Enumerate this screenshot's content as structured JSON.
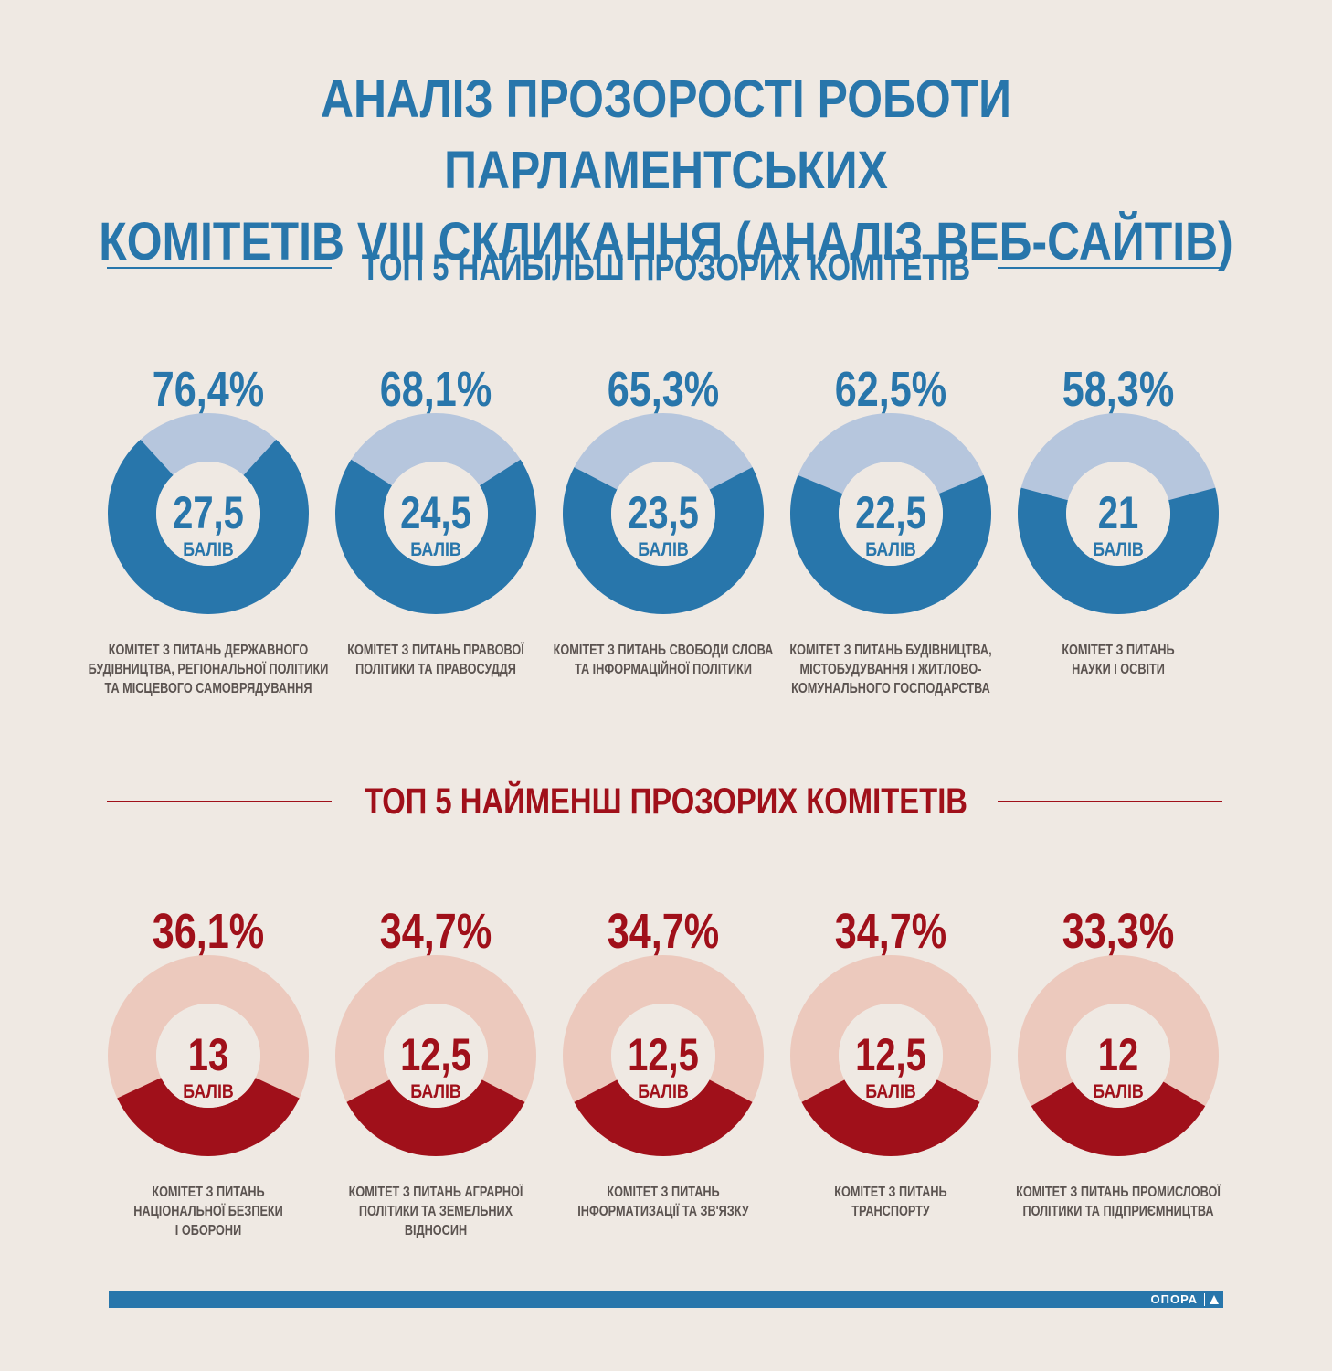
{
  "title": {
    "line1": "АНАЛІЗ ПРОЗОРОСТІ РОБОТИ ПАРЛАМЕНТСЬКИХ",
    "line2": "КОМІТЕТІВ VIII СКЛИКАННЯ (АНАЛІЗ ВЕБ-САЙТІВ)"
  },
  "top_heading": "ТОП 5 НАЙБІЛЬШ ПРОЗОРИХ КОМІТЕТІВ",
  "bottom_heading": "ТОП 5 НАЙМЕНШ ПРОЗОРИХ КОМІТЕТІВ",
  "logo": "ОПОРА",
  "colors": {
    "background": "#efe9e3",
    "top_accent": "#2876ab",
    "top_rest": "#b6c6dd",
    "bottom_accent": "#a0101a",
    "bottom_rest": "#ecc9bd"
  },
  "chart_data": [
    {
      "type": "pie",
      "title": "ТОП 5 НАЙБІЛЬШ ПРОЗОРИХ КОМІТЕТІВ",
      "unit_label": "БАЛІВ",
      "items": [
        {
          "percent_label": "76,4%",
          "percent": 76.4,
          "score": "27,5",
          "name_lines": [
            "КОМІТЕТ З ПИТАНЬ ДЕРЖАВНОГО",
            "БУДІВНИЦТВА, РЕГІОНАЛЬНОЇ ПОЛІТИКИ",
            "ТА МІСЦЕВОГО САМОВРЯДУВАННЯ"
          ]
        },
        {
          "percent_label": "68,1%",
          "percent": 68.1,
          "score": "24,5",
          "name_lines": [
            "КОМІТЕТ З ПИТАНЬ ПРАВОВОЇ",
            "ПОЛІТИКИ ТА ПРАВОСУДДЯ"
          ]
        },
        {
          "percent_label": "65,3%",
          "percent": 65.3,
          "score": "23,5",
          "name_lines": [
            "КОМІТЕТ З ПИТАНЬ СВОБОДИ СЛОВА",
            "ТА ІНФОРМАЦІЙНОЇ ПОЛІТИКИ"
          ]
        },
        {
          "percent_label": "62,5%",
          "percent": 62.5,
          "score": "22,5",
          "name_lines": [
            "КОМІТЕТ З ПИТАНЬ БУДІВНИЦТВА,",
            "МІСТОБУДУВАННЯ І ЖИТЛОВО-",
            "КОМУНАЛЬНОГО ГОСПОДАРСТВА"
          ]
        },
        {
          "percent_label": "58,3%",
          "percent": 58.3,
          "score": "21",
          "name_lines": [
            "КОМІТЕТ З ПИТАНЬ",
            "НАУКИ І ОСВІТИ"
          ]
        }
      ]
    },
    {
      "type": "pie",
      "title": "ТОП 5 НАЙМЕНШ ПРОЗОРИХ КОМІТЕТІВ",
      "unit_label": "БАЛІВ",
      "items": [
        {
          "percent_label": "36,1%",
          "percent": 36.1,
          "score": "13",
          "name_lines": [
            "КОМІТЕТ З ПИТАНЬ",
            "НАЦІОНАЛЬНОЇ БЕЗПЕКИ",
            "І ОБОРОНИ"
          ]
        },
        {
          "percent_label": "34,7%",
          "percent": 34.7,
          "score": "12,5",
          "name_lines": [
            "КОМІТЕТ З ПИТАНЬ АГРАРНОЇ",
            "ПОЛІТИКИ ТА ЗЕМЕЛЬНИХ",
            "ВІДНОСИН"
          ]
        },
        {
          "percent_label": "34,7%",
          "percent": 34.7,
          "score": "12,5",
          "name_lines": [
            "КОМІТЕТ З ПИТАНЬ",
            "ІНФОРМАТИЗАЦІЇ ТА ЗВ'ЯЗКУ"
          ]
        },
        {
          "percent_label": "34,7%",
          "percent": 34.7,
          "score": "12,5",
          "name_lines": [
            "КОМІТЕТ З ПИТАНЬ",
            "ТРАНСПОРТУ"
          ]
        },
        {
          "percent_label": "33,3%",
          "percent": 33.3,
          "score": "12",
          "name_lines": [
            "КОМІТЕТ З ПИТАНЬ ПРОМИСЛОВОЇ",
            "ПОЛІТИКИ ТА ПІДПРИЄМНИЦТВА"
          ]
        }
      ]
    }
  ]
}
